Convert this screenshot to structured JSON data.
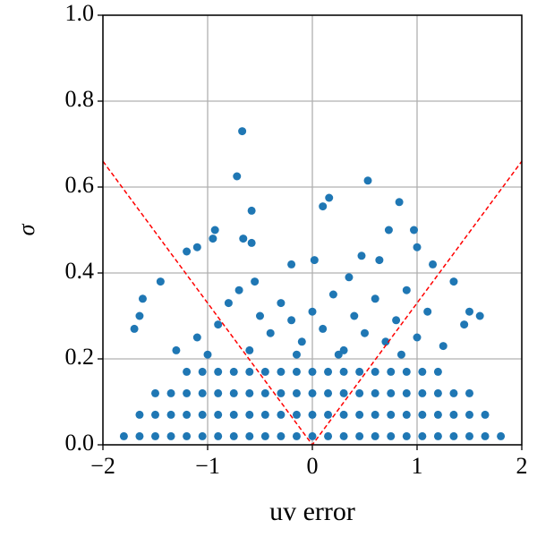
{
  "chart_data": {
    "type": "scatter",
    "xlabel": "uv error",
    "ylabel": "σ",
    "xlim": [
      -2,
      2
    ],
    "ylim": [
      0,
      1
    ],
    "xticks": [
      {
        "value": -2,
        "label": "−2"
      },
      {
        "value": -1,
        "label": "−1"
      },
      0,
      1,
      2
    ],
    "yticks": [
      {
        "value": 0,
        "label": "0.0"
      },
      0.2,
      0.4,
      0.6,
      0.8,
      {
        "value": 1,
        "label": "1.0"
      }
    ],
    "grid": true,
    "series": [
      {
        "color": "#1f77b4",
        "x": [
          -1.8,
          -1.65,
          -1.65,
          -1.5,
          -1.5,
          -1.5,
          -1.35,
          -1.35,
          -1.35,
          -1.2,
          -1.2,
          -1.2,
          -1.2,
          -1.05,
          -1.05,
          -1.05,
          -1.05,
          -0.9,
          -0.9,
          -0.9,
          -0.9,
          -0.75,
          -0.75,
          -0.75,
          -0.75,
          -0.6,
          -0.6,
          -0.6,
          -0.6,
          -0.45,
          -0.45,
          -0.45,
          -0.45,
          -0.3,
          -0.3,
          -0.3,
          -0.3,
          -0.15,
          -0.15,
          -0.15,
          -0.15,
          0,
          0,
          0,
          0,
          0.15,
          0.15,
          0.15,
          0.15,
          0.3,
          0.3,
          0.3,
          0.3,
          0.45,
          0.45,
          0.45,
          0.45,
          0.6,
          0.6,
          0.6,
          0.6,
          0.75,
          0.75,
          0.75,
          0.75,
          0.9,
          0.9,
          0.9,
          0.9,
          1.05,
          1.05,
          1.05,
          1.05,
          1.2,
          1.2,
          1.2,
          1.2,
          1.35,
          1.35,
          1.35,
          1.5,
          1.5,
          1.5,
          1.65,
          1.65,
          1.8,
          -1.3,
          -1.1,
          -0.9,
          -0.8,
          -0.7,
          -0.5,
          -0.4,
          -0.3,
          -0.2,
          -0.1,
          0,
          0.1,
          0.2,
          0.3,
          0.4,
          0.5,
          0.6,
          0.7,
          0.8,
          0.9,
          1.0,
          1.1,
          1.25,
          -1.0,
          -0.6,
          -0.15,
          0.25,
          0.85,
          -0.55,
          0.35,
          -0.67,
          -0.72,
          -0.58,
          0.53,
          0.83,
          0.16,
          0.1,
          0.73,
          0.97,
          -0.93,
          -0.95,
          -0.66,
          -0.58,
          -1.2,
          -1.1,
          1.0,
          0.47,
          0.64,
          -0.2,
          0.02,
          1.15,
          -1.45,
          1.35,
          -1.62,
          -1.65,
          1.5,
          1.45,
          -1.7,
          1.6
        ],
        "values": [
          0.02,
          0.02,
          0.07,
          0.02,
          0.07,
          0.12,
          0.02,
          0.07,
          0.12,
          0.02,
          0.07,
          0.12,
          0.17,
          0.02,
          0.07,
          0.12,
          0.17,
          0.02,
          0.07,
          0.12,
          0.17,
          0.02,
          0.07,
          0.12,
          0.17,
          0.02,
          0.07,
          0.12,
          0.17,
          0.02,
          0.07,
          0.12,
          0.17,
          0.02,
          0.07,
          0.12,
          0.17,
          0.02,
          0.07,
          0.12,
          0.17,
          0.02,
          0.07,
          0.12,
          0.17,
          0.02,
          0.07,
          0.12,
          0.17,
          0.02,
          0.07,
          0.12,
          0.17,
          0.02,
          0.07,
          0.12,
          0.17,
          0.02,
          0.07,
          0.12,
          0.17,
          0.02,
          0.07,
          0.12,
          0.17,
          0.02,
          0.07,
          0.12,
          0.17,
          0.02,
          0.07,
          0.12,
          0.17,
          0.02,
          0.07,
          0.12,
          0.17,
          0.02,
          0.07,
          0.12,
          0.02,
          0.07,
          0.12,
          0.02,
          0.07,
          0.02,
          0.22,
          0.25,
          0.28,
          0.33,
          0.36,
          0.3,
          0.26,
          0.33,
          0.29,
          0.24,
          0.31,
          0.27,
          0.35,
          0.22,
          0.3,
          0.26,
          0.34,
          0.24,
          0.29,
          0.36,
          0.25,
          0.31,
          0.23,
          0.21,
          0.22,
          0.21,
          0.21,
          0.21,
          0.38,
          0.39,
          0.73,
          0.625,
          0.545,
          0.615,
          0.565,
          0.575,
          0.555,
          0.5,
          0.5,
          0.5,
          0.48,
          0.48,
          0.47,
          0.45,
          0.46,
          0.46,
          0.44,
          0.43,
          0.42,
          0.43,
          0.42,
          0.38,
          0.38,
          0.34,
          0.3,
          0.31,
          0.28,
          0.27,
          0.3
        ]
      }
    ],
    "reference_line": {
      "color": "#ff0000",
      "x": [
        -2,
        0,
        2
      ],
      "values": [
        0.66,
        0,
        0.66
      ]
    }
  }
}
